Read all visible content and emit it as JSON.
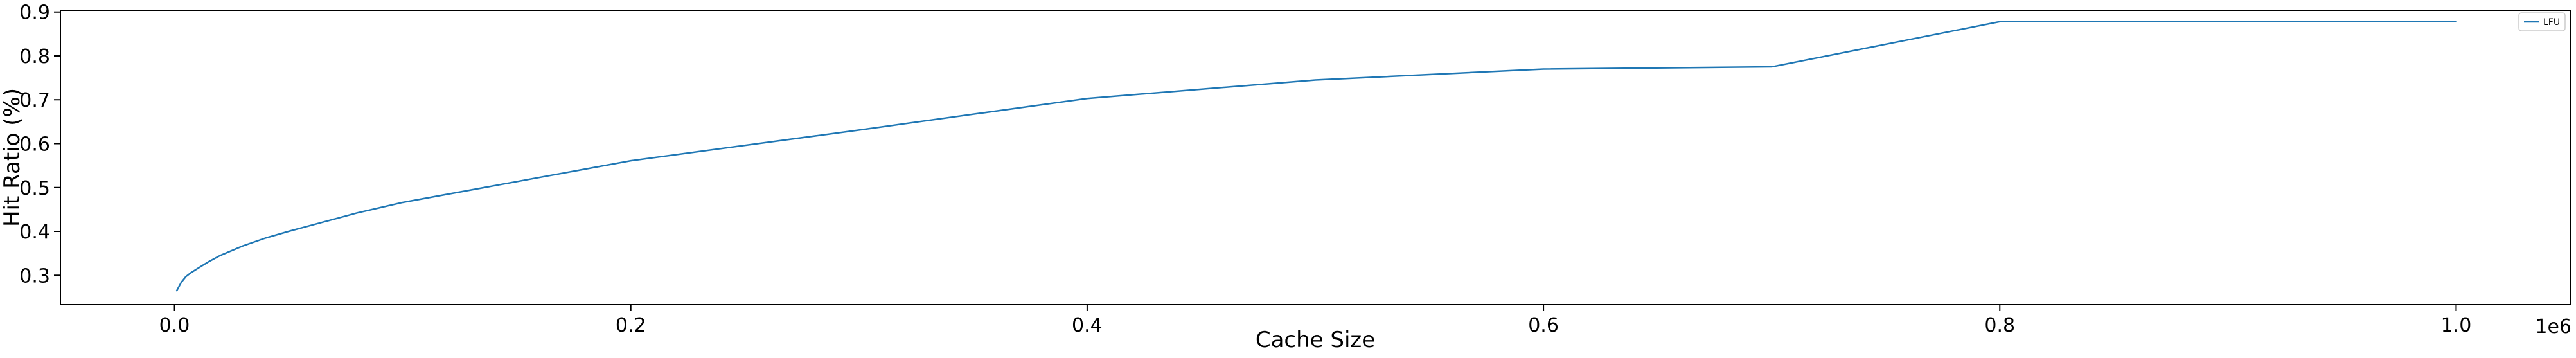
{
  "chart_data": {
    "type": "line",
    "title": "",
    "xlabel": "Cache Size",
    "ylabel": "Hit Ratio (%)",
    "x_scale_label": "1e6",
    "xlim": [
      -0.05,
      1.05
    ],
    "ylim": [
      0.233,
      0.904
    ],
    "x_ticks": [
      0.0,
      0.2,
      0.4,
      0.6,
      0.8,
      1.0
    ],
    "x_tick_labels": [
      "0.0",
      "0.2",
      "0.4",
      "0.6",
      "0.8",
      "1.0"
    ],
    "y_ticks": [
      0.3,
      0.4,
      0.5,
      0.6,
      0.7,
      0.8,
      0.9
    ],
    "y_tick_labels": [
      "0.3",
      "0.4",
      "0.5",
      "0.6",
      "0.7",
      "0.8",
      "0.9"
    ],
    "grid": false,
    "legend_position": "top-right",
    "series": [
      {
        "name": "LFU",
        "color": "#1f77b4",
        "x": [
          0.001,
          0.003,
          0.005,
          0.007,
          0.01,
          0.015,
          0.02,
          0.03,
          0.04,
          0.05,
          0.06,
          0.07,
          0.08,
          0.09,
          0.1,
          0.2,
          0.3,
          0.4,
          0.5,
          0.6,
          0.7,
          0.8,
          0.9,
          1.0
        ],
        "y": [
          0.265,
          0.284,
          0.297,
          0.305,
          0.315,
          0.331,
          0.345,
          0.367,
          0.385,
          0.4,
          0.414,
          0.428,
          0.442,
          0.454,
          0.466,
          0.561,
          0.631,
          0.703,
          0.745,
          0.77,
          0.775,
          0.878,
          0.878,
          0.878
        ]
      }
    ]
  }
}
